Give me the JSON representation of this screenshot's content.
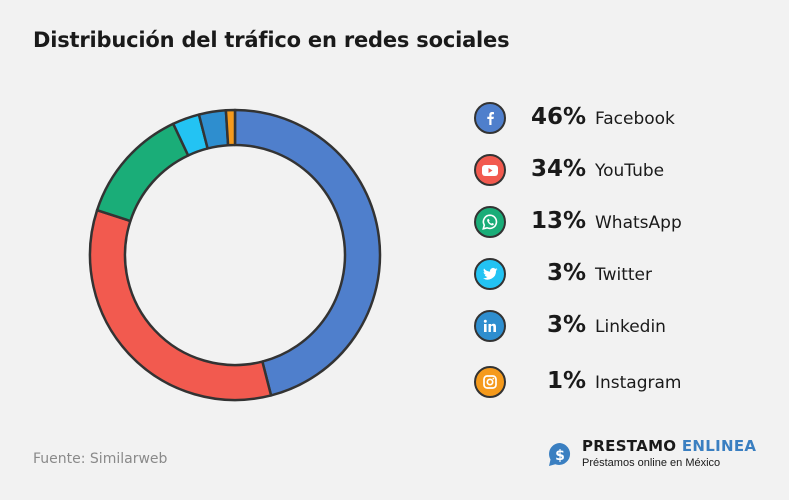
{
  "title": "Distribución del tráfico en redes sociales",
  "source": "Fuente: Similarweb",
  "brand": {
    "name_part1": "PRESTAMO",
    "name_part2": "ENLINEA",
    "tagline": "Préstamos online en México"
  },
  "chart_data": {
    "type": "pie",
    "title": "Distribución del tráfico en redes sociales",
    "categories": [
      "Facebook",
      "YouTube",
      "WhatsApp",
      "Twitter",
      "Linkedin",
      "Instagram"
    ],
    "values": [
      46,
      34,
      13,
      3,
      3,
      1
    ],
    "labels": [
      "46%",
      "34%",
      "13%",
      "3%",
      "3%",
      "1%"
    ],
    "colors": [
      "#4f7fcc",
      "#f25a4f",
      "#1aad78",
      "#23c3f3",
      "#2e8ecf",
      "#f59a1c"
    ],
    "icons": [
      "facebook-icon",
      "youtube-icon",
      "whatsapp-icon",
      "twitter-icon",
      "linkedin-icon",
      "instagram-icon"
    ],
    "legend_position": "right"
  }
}
